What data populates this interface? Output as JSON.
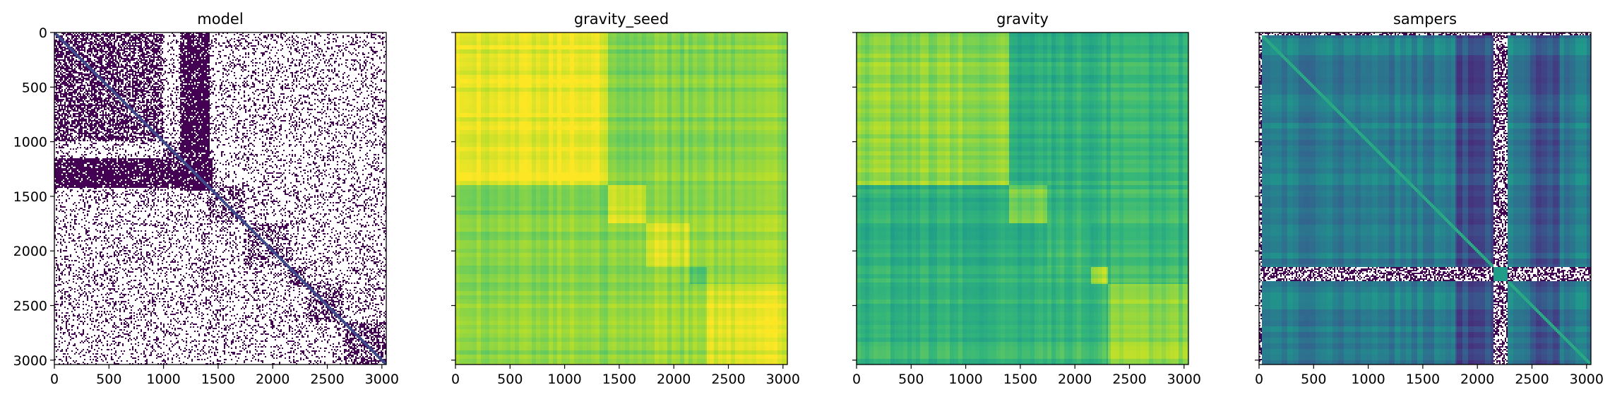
{
  "chart_data": [
    {
      "type": "heatmap",
      "title": "model",
      "colormap": "viridis",
      "style": "binary",
      "xlim": [
        0,
        3040
      ],
      "ylim": [
        3040,
        0
      ],
      "xticks": [
        0,
        500,
        1000,
        1500,
        2000,
        2500,
        3000
      ],
      "yticks": [
        0,
        500,
        1000,
        1500,
        2000,
        2500,
        3000
      ],
      "blocks": [
        {
          "start": 0,
          "end": 1000,
          "density": 0.62
        },
        {
          "start": 1000,
          "end": 1200,
          "density": 0.55
        },
        {
          "start": 1200,
          "end": 1400,
          "density": 0.8
        },
        {
          "start": 1400,
          "end": 1750,
          "density": 0.45
        },
        {
          "start": 1750,
          "end": 2150,
          "density": 0.42
        },
        {
          "start": 2150,
          "end": 2300,
          "density": 0.55
        },
        {
          "start": 2300,
          "end": 2650,
          "density": 0.5
        },
        {
          "start": 2650,
          "end": 3040,
          "density": 0.55
        }
      ],
      "dense_bands": [
        {
          "start": 1200,
          "end": 1400
        },
        {
          "start": 1150,
          "end": 1420
        }
      ]
    },
    {
      "type": "heatmap",
      "title": "gravity_seed",
      "colormap": "viridis",
      "style": "smooth",
      "xlim": [
        0,
        3040
      ],
      "ylim": [
        3040,
        0
      ],
      "xticks": [
        0,
        500,
        1000,
        1500,
        2000,
        2500,
        3000
      ],
      "yticks": [
        0,
        500,
        1000,
        1500,
        2000,
        2500,
        3000
      ],
      "value_range": [
        0.68,
        1.0
      ],
      "blocks": [
        {
          "start": 0,
          "end": 1400,
          "level": 0.98
        },
        {
          "start": 1400,
          "end": 1750,
          "level": 0.96
        },
        {
          "start": 1750,
          "end": 2150,
          "level": 0.95
        },
        {
          "start": 2150,
          "end": 2300,
          "level": 0.85
        },
        {
          "start": 2300,
          "end": 3040,
          "level": 0.97
        }
      ],
      "cross_level": 0.88
    },
    {
      "type": "heatmap",
      "title": "gravity",
      "colormap": "viridis",
      "style": "smooth",
      "xlim": [
        0,
        3040
      ],
      "ylim": [
        3040,
        0
      ],
      "xticks": [
        0,
        500,
        1000,
        1500,
        2000,
        2500,
        3000
      ],
      "yticks": [
        0,
        500,
        1000,
        1500,
        2000,
        2500,
        3000
      ],
      "value_range": [
        0.58,
        0.9
      ],
      "blocks": [
        {
          "start": 0,
          "end": 1400,
          "level": 0.8
        },
        {
          "start": 1400,
          "end": 1750,
          "level": 0.78
        },
        {
          "start": 1750,
          "end": 2150,
          "level": 0.72
        },
        {
          "start": 2150,
          "end": 2300,
          "level": 0.82
        },
        {
          "start": 2300,
          "end": 3040,
          "level": 0.8
        }
      ],
      "cross_level": 0.68
    },
    {
      "type": "heatmap",
      "title": "sampers",
      "colormap": "viridis",
      "style": "mixed",
      "xlim": [
        0,
        3040
      ],
      "ylim": [
        3040,
        0
      ],
      "xticks": [
        0,
        500,
        1000,
        1500,
        2000,
        2500,
        3000
      ],
      "yticks": [
        0,
        500,
        1000,
        1500,
        2000,
        2500,
        3000
      ],
      "value_range": [
        0.0,
        1.0
      ],
      "noise_band": {
        "start": 2150,
        "end": 2280
      },
      "dark_columns": [
        {
          "start": 1800,
          "end": 2150
        },
        {
          "start": 2480,
          "end": 2750
        }
      ],
      "base_level": 0.42
    }
  ]
}
